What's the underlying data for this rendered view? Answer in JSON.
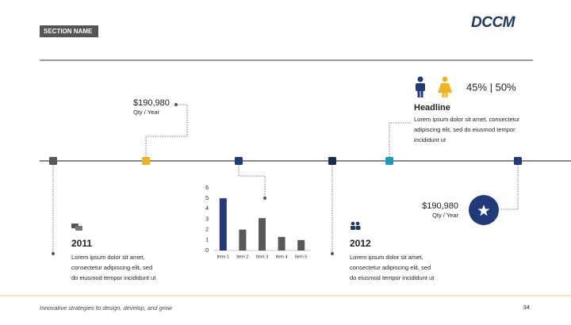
{
  "header": {
    "section_name": "SECTION NAME",
    "logo": "DCCM"
  },
  "milestones": [
    {
      "amount": "$190,980",
      "unit": "Qty / Year"
    },
    {
      "year": "2011",
      "text": [
        "Lorem ipsum dolor sit amet,",
        "consectetur adipiscing elit, sed",
        "do eiusmod tempor incididunt ut"
      ]
    },
    {
      "year": "2012",
      "text": [
        "Lorem ipsum dolor sit amet,",
        "consectetur adipiscing elit, sed",
        "do eiusmod tempor incididunt ut"
      ]
    },
    {
      "ratio": "45% | 50%",
      "headline": "Headline",
      "text": [
        "Lorem ipsum dolor sit amet, consectetur",
        "adipiscing elit, sed do eiusmod tempor",
        "incididunt ut"
      ]
    },
    {
      "amount": "$190,980",
      "unit": "Qty / Year"
    }
  ],
  "chart_data": {
    "type": "bar",
    "categories": [
      "Item 1",
      "Item 2",
      "Item 3",
      "Item 4",
      "Item 5"
    ],
    "values": [
      5,
      2,
      3.1,
      1.3,
      1
    ],
    "colors": [
      "#203a7a",
      "#595959",
      "#595959",
      "#595959",
      "#595959"
    ],
    "ylim": [
      0,
      6
    ],
    "yticks": [
      0,
      1,
      2,
      3,
      4,
      5,
      6
    ]
  },
  "footer": {
    "tagline": "Innovative strategies to design, develop, and grow",
    "page": "34"
  }
}
